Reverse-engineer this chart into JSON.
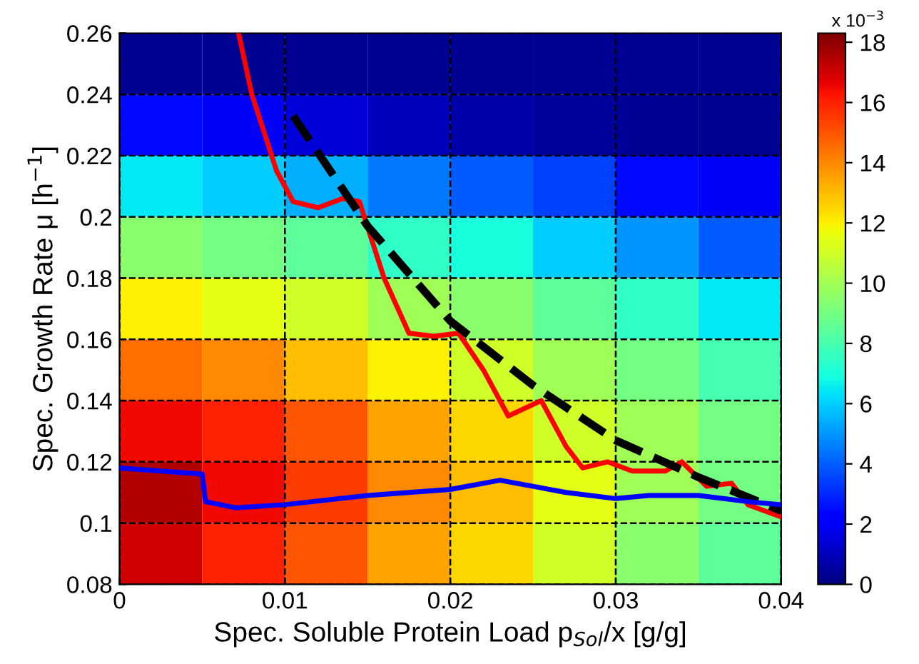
{
  "chart_data": {
    "type": "heatmap",
    "xlabel": "Spec. Soluble Protein Load p$_{Sol}$/x [g/g]",
    "ylabel": "Spec. Growth Rate μ [h$^{−1}$]",
    "clabel": "x 10$^{−3}$",
    "xlim": [
      0,
      0.04
    ],
    "ylim": [
      0.08,
      0.26
    ],
    "xticks": [
      0,
      0.01,
      0.02,
      0.03,
      0.04
    ],
    "yticks": [
      0.08,
      0.1,
      0.12,
      0.14,
      0.16,
      0.18,
      0.2,
      0.22,
      0.24,
      0.26
    ],
    "clim": [
      0,
      18.3
    ],
    "cticks": [
      0,
      2,
      4,
      6,
      8,
      10,
      12,
      14,
      16,
      18
    ],
    "cells": [
      [
        0.3,
        0.3,
        0.3,
        0.3,
        0.3,
        0.3,
        0.3,
        0.3
      ],
      [
        2.5,
        2,
        1.5,
        1,
        0.7,
        0.5,
        0.4,
        0.3
      ],
      [
        6.5,
        6,
        5.5,
        4.5,
        4,
        3.5,
        2.5,
        2
      ],
      [
        9.5,
        9,
        8.5,
        7.5,
        7,
        6,
        5,
        4
      ],
      [
        12,
        11.5,
        11,
        10,
        9.5,
        8.5,
        7.5,
        6.5
      ],
      [
        14.5,
        14,
        13,
        12,
        11,
        10,
        9,
        8
      ],
      [
        16.5,
        16,
        15,
        13.5,
        12.5,
        11,
        10,
        9
      ],
      [
        17.5,
        16.5,
        15.5,
        14,
        13,
        11.5,
        10,
        9
      ],
      [
        17,
        16,
        15,
        13.5,
        12.5,
        11,
        9.5,
        8.5
      ]
    ],
    "grid": true,
    "series": [
      {
        "type": "line",
        "color": "#ff0000",
        "line_style": "solid",
        "x": [
          0.0072,
          0.008,
          0.0095,
          0.0105,
          0.012,
          0.0135,
          0.0145,
          0.016,
          0.0175,
          0.019,
          0.0205,
          0.022,
          0.0235,
          0.0255,
          0.027,
          0.028,
          0.0295,
          0.031,
          0.033,
          0.034,
          0.0355,
          0.037,
          0.038,
          0.04
        ],
        "values": [
          0.26,
          0.24,
          0.215,
          0.205,
          0.203,
          0.206,
          0.205,
          0.18,
          0.162,
          0.161,
          0.162,
          0.15,
          0.135,
          0.14,
          0.125,
          0.118,
          0.12,
          0.117,
          0.117,
          0.12,
          0.112,
          0.113,
          0.106,
          0.102
        ]
      },
      {
        "type": "line",
        "color": "#000000",
        "line_style": "dashed",
        "x": [
          0.0105,
          0.015,
          0.02,
          0.025,
          0.03,
          0.035,
          0.04
        ],
        "values": [
          0.233,
          0.197,
          0.166,
          0.145,
          0.127,
          0.115,
          0.104
        ]
      },
      {
        "type": "line",
        "color": "#0000ff",
        "line_style": "solid",
        "x": [
          0,
          0.005,
          0.0052,
          0.007,
          0.01,
          0.015,
          0.02,
          0.023,
          0.027,
          0.03,
          0.032,
          0.035,
          0.038,
          0.04
        ],
        "values": [
          0.118,
          0.116,
          0.107,
          0.105,
          0.106,
          0.109,
          0.111,
          0.114,
          0.11,
          0.108,
          0.109,
          0.109,
          0.107,
          0.106
        ]
      }
    ]
  }
}
